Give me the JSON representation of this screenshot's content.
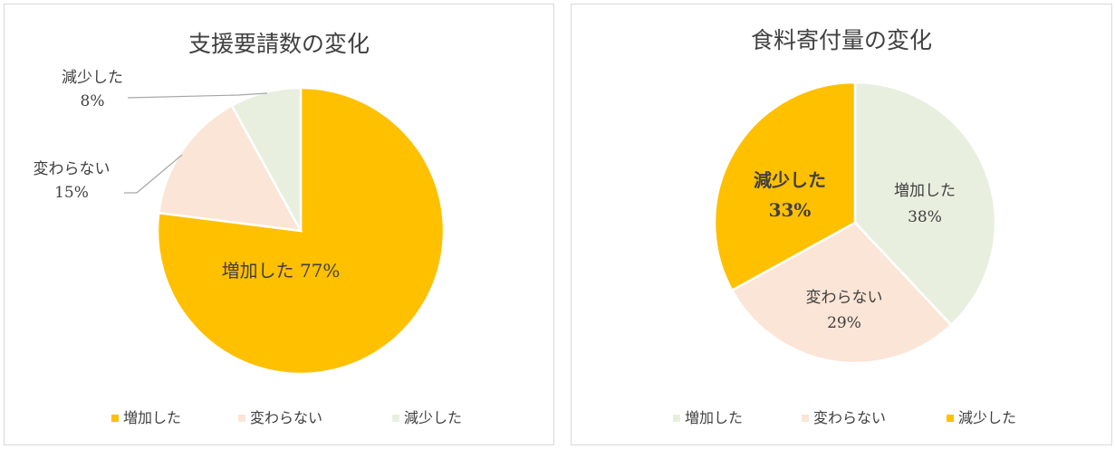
{
  "chart_data": [
    {
      "type": "pie",
      "title": "支援要請数の変化",
      "categories": [
        "増加した",
        "変わらない",
        "減少した"
      ],
      "values": [
        77,
        15,
        8
      ],
      "unit": "%",
      "colors": [
        "#FFC000",
        "#FBE5D6",
        "#E9EFDF"
      ],
      "data_labels": [
        {
          "category": "増加した",
          "value": "77%"
        },
        {
          "category": "変わらない",
          "value": "15%"
        },
        {
          "category": "減少した",
          "value": "8%"
        }
      ],
      "legend": {
        "position": "bottom",
        "entries": [
          "増加した",
          "変わらない",
          "減少した"
        ]
      }
    },
    {
      "type": "pie",
      "title": "食料寄付量の変化",
      "categories": [
        "増加した",
        "変わらない",
        "減少した"
      ],
      "values": [
        38,
        29,
        33
      ],
      "unit": "%",
      "colors": [
        "#E9EFDF",
        "#FBE5D6",
        "#FFC000"
      ],
      "data_labels": [
        {
          "category": "増加した",
          "value": "38%"
        },
        {
          "category": "変わらない",
          "value": "29%"
        },
        {
          "category": "減少した",
          "value": "33%"
        }
      ],
      "legend": {
        "position": "bottom",
        "entries": [
          "増加した",
          "変わらない",
          "減少した"
        ]
      }
    }
  ]
}
